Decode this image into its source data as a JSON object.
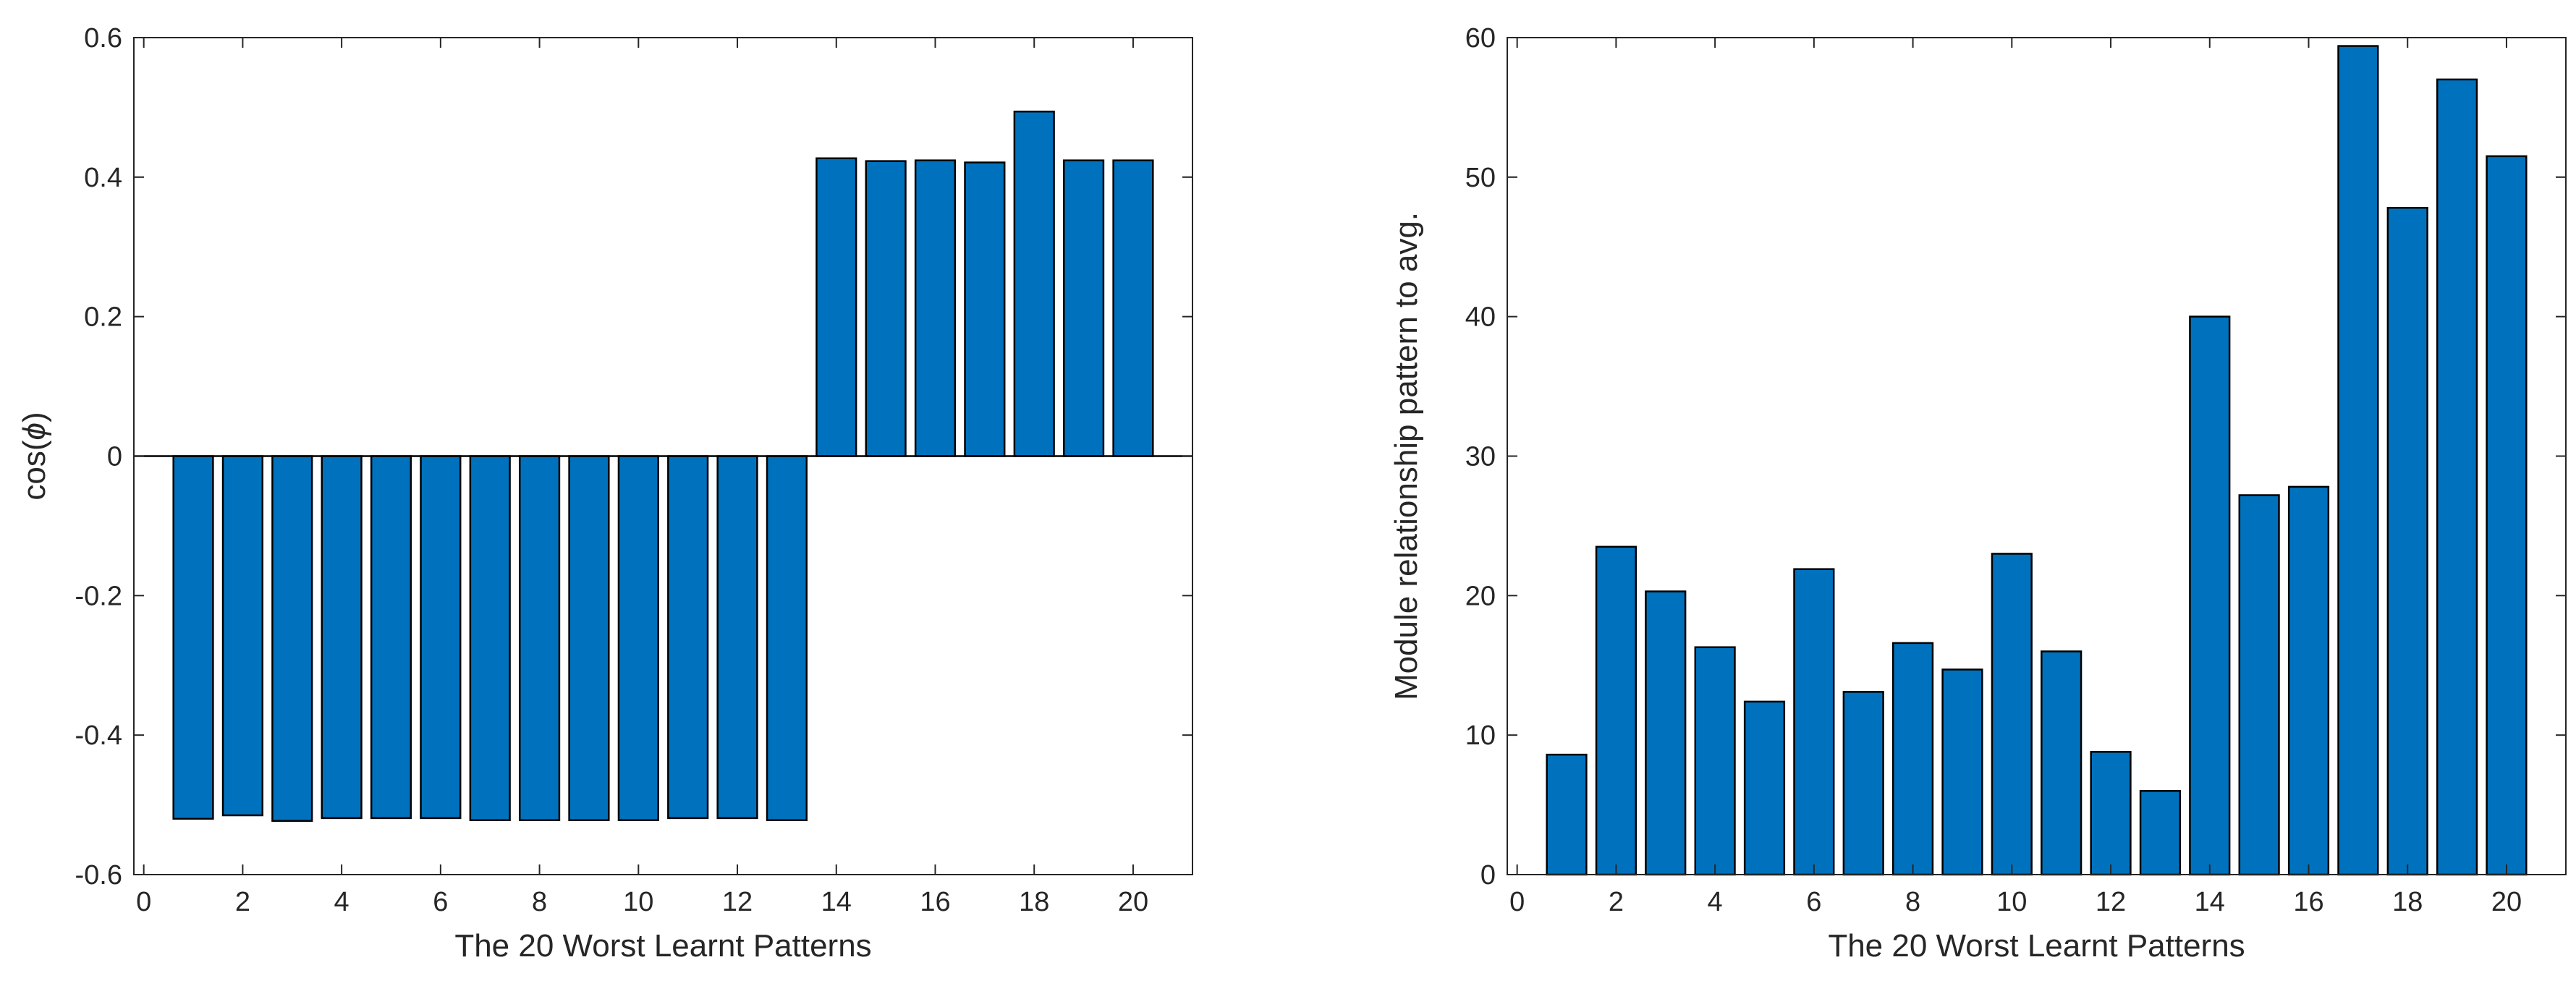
{
  "chart_data": [
    {
      "type": "bar",
      "categories": [
        1,
        2,
        3,
        4,
        5,
        6,
        7,
        8,
        9,
        10,
        11,
        12,
        13,
        14,
        15,
        16,
        17,
        18,
        19,
        20
      ],
      "values": [
        -0.52,
        -0.515,
        -0.523,
        -0.519,
        -0.519,
        -0.519,
        -0.522,
        -0.522,
        -0.522,
        -0.522,
        -0.519,
        -0.519,
        -0.522,
        0.427,
        0.423,
        0.424,
        0.421,
        0.494,
        0.424,
        0.424
      ],
      "title": "",
      "xlabel": "The 20 Worst Learnt Patterns",
      "ylabel_prefix": "cos(",
      "ylabel_symbol": "ϕ",
      "ylabel_suffix": ")",
      "xlim": [
        -0.2,
        21.2
      ],
      "ylim": [
        -0.6,
        0.6
      ],
      "xticks": [
        0,
        2,
        4,
        6,
        8,
        10,
        12,
        14,
        16,
        18,
        20
      ],
      "xtick_labels": [
        "0",
        "2",
        "4",
        "6",
        "8",
        "10",
        "12",
        "14",
        "16",
        "18",
        "20"
      ],
      "yticks": [
        -0.6,
        -0.4,
        -0.2,
        0,
        0.2,
        0.4,
        0.6
      ],
      "ytick_labels": [
        "-0.6",
        "-0.4",
        "-0.2",
        "0",
        "0.2",
        "0.4",
        "0.6"
      ],
      "bar_width": 0.8,
      "bar_color": "#0072bd",
      "show_baseline": true,
      "grid": false
    },
    {
      "type": "bar",
      "categories": [
        1,
        2,
        3,
        4,
        5,
        6,
        7,
        8,
        9,
        10,
        11,
        12,
        13,
        14,
        15,
        16,
        17,
        18,
        19,
        20
      ],
      "values": [
        8.6,
        23.5,
        20.3,
        16.3,
        12.4,
        21.9,
        13.1,
        16.6,
        14.7,
        23,
        16,
        8.8,
        6,
        40,
        27.2,
        27.8,
        59.4,
        47.8,
        57,
        51.5
      ],
      "title": "",
      "xlabel": "The 20 Worst Learnt Patterns",
      "ylabel": "Module relationship pattern to avg.",
      "xlim": [
        -0.2,
        21.2
      ],
      "ylim": [
        0,
        60
      ],
      "xticks": [
        0,
        2,
        4,
        6,
        8,
        10,
        12,
        14,
        16,
        18,
        20
      ],
      "xtick_labels": [
        "0",
        "2",
        "4",
        "6",
        "8",
        "10",
        "12",
        "14",
        "16",
        "18",
        "20"
      ],
      "yticks": [
        0,
        10,
        20,
        30,
        40,
        50,
        60
      ],
      "ytick_labels": [
        "0",
        "10",
        "20",
        "30",
        "40",
        "50",
        "60"
      ],
      "bar_width": 0.8,
      "bar_color": "#0072bd",
      "show_baseline": false,
      "grid": false
    }
  ]
}
